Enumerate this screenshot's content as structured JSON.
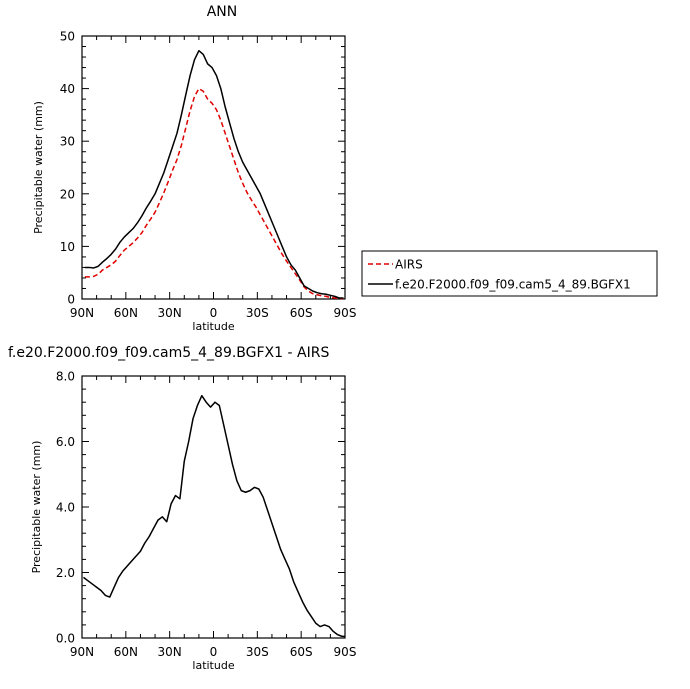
{
  "chart_data": [
    {
      "type": "line",
      "title": "ANN",
      "xlabel": "latitude",
      "ylabel": "Precipitable water (mm)",
      "xlim": [
        90,
        -90
      ],
      "ylim": [
        0,
        50
      ],
      "xticks": [
        90,
        60,
        30,
        0,
        -30,
        -60,
        -90
      ],
      "xtick_labels": [
        "90N",
        "60N",
        "30N",
        "0",
        "30S",
        "60S",
        "90S"
      ],
      "yticks": [
        0,
        10,
        20,
        30,
        40,
        50
      ],
      "ytick_labels": [
        "0",
        "10",
        "20",
        "30",
        "40",
        "50"
      ],
      "grid": false,
      "legend_placement": "right",
      "series": [
        {
          "name": "AIRS",
          "color": "#e00000",
          "dash": "dashed",
          "x": [
            88,
            85,
            82,
            79,
            76,
            73,
            70,
            67,
            64,
            61,
            58,
            55,
            52,
            49,
            46,
            43,
            40,
            37,
            34,
            31,
            28,
            25,
            22,
            19,
            16,
            13,
            10,
            7,
            4,
            1,
            -2,
            -5,
            -8,
            -11,
            -14,
            -17,
            -20,
            -23,
            -26,
            -29,
            -32,
            -35,
            -38,
            -41,
            -44,
            -47,
            -50,
            -53,
            -56,
            -59,
            -62,
            -65,
            -68,
            -71,
            -74,
            -77,
            -80,
            -83,
            -86,
            -89
          ],
          "y": [
            4.2,
            4.2,
            4.3,
            4.7,
            5.5,
            6.0,
            6.5,
            7.2,
            8.3,
            9.3,
            10.0,
            10.7,
            11.6,
            12.6,
            14.0,
            15.2,
            16.5,
            18.3,
            20.2,
            22.3,
            24.5,
            26.5,
            29.2,
            32.5,
            35.8,
            38.5,
            40.0,
            39.5,
            38.0,
            37.2,
            36.0,
            34.0,
            31.5,
            29.0,
            26.5,
            24.0,
            22.0,
            20.2,
            18.8,
            17.5,
            16.0,
            14.5,
            13.0,
            11.5,
            10.0,
            8.5,
            7.2,
            6.0,
            4.8,
            3.6,
            2.3,
            1.5,
            1.0,
            0.8,
            0.6,
            0.5,
            0.3,
            0.2,
            0.1,
            0.1
          ]
        },
        {
          "name": "f.e20.F2000.f09_f09.cam5_4_89.BGFX1",
          "color": "#000000",
          "dash": "solid",
          "x": [
            88,
            85,
            82,
            79,
            76,
            73,
            70,
            67,
            64,
            61,
            58,
            55,
            52,
            49,
            46,
            43,
            40,
            37,
            34,
            31,
            28,
            25,
            22,
            19,
            16,
            13,
            10,
            7,
            4,
            1,
            -2,
            -5,
            -8,
            -11,
            -14,
            -17,
            -20,
            -23,
            -26,
            -29,
            -32,
            -35,
            -38,
            -41,
            -44,
            -47,
            -50,
            -53,
            -56,
            -59,
            -62,
            -65,
            -68,
            -71,
            -74,
            -77,
            -80,
            -83,
            -86,
            -89
          ],
          "y": [
            6.0,
            6.0,
            5.9,
            6.2,
            7.0,
            7.7,
            8.5,
            9.5,
            10.8,
            11.8,
            12.6,
            13.4,
            14.5,
            15.8,
            17.3,
            18.6,
            20.0,
            22.0,
            24.0,
            26.5,
            29.0,
            31.5,
            35.0,
            38.8,
            42.5,
            45.5,
            47.2,
            46.5,
            44.7,
            44.0,
            42.5,
            40.0,
            36.5,
            33.5,
            30.5,
            28.0,
            26.0,
            24.5,
            23.0,
            21.5,
            20.0,
            18.0,
            16.0,
            14.0,
            12.0,
            10.0,
            8.0,
            6.5,
            5.5,
            4.0,
            2.5,
            2.0,
            1.5,
            1.2,
            1.0,
            0.9,
            0.7,
            0.5,
            0.2,
            0.2
          ]
        }
      ]
    },
    {
      "type": "line",
      "title": "f.e20.F2000.f09_f09.cam5_4_89.BGFX1 - AIRS",
      "xlabel": "latitude",
      "ylabel": "Precipitable water (mm)",
      "xlim": [
        90,
        -90
      ],
      "ylim": [
        0,
        8
      ],
      "xticks": [
        90,
        60,
        30,
        0,
        -30,
        -60,
        -90
      ],
      "xtick_labels": [
        "90N",
        "60N",
        "30N",
        "0",
        "30S",
        "60S",
        "90S"
      ],
      "yticks": [
        0,
        2,
        4,
        6,
        8
      ],
      "ytick_labels": [
        "0.0",
        "2.0",
        "4.0",
        "6.0",
        "8.0"
      ],
      "grid": false,
      "series": [
        {
          "color": "#000000",
          "dash": "solid",
          "x": [
            89,
            86,
            83,
            80,
            77,
            74,
            71,
            68,
            65,
            62,
            59,
            56,
            53,
            50,
            47,
            44,
            41,
            38,
            35,
            32,
            29,
            26,
            23,
            20,
            17,
            14,
            11,
            8,
            5,
            2,
            -1,
            -4,
            -7,
            -10,
            -13,
            -16,
            -19,
            -22,
            -25,
            -28,
            -31,
            -34,
            -37,
            -40,
            -43,
            -46,
            -49,
            -52,
            -55,
            -58,
            -61,
            -64,
            -67,
            -70,
            -73,
            -76,
            -79,
            -82,
            -85,
            -88,
            -90
          ],
          "y": [
            1.85,
            1.75,
            1.65,
            1.55,
            1.45,
            1.3,
            1.25,
            1.55,
            1.85,
            2.05,
            2.2,
            2.35,
            2.5,
            2.65,
            2.9,
            3.1,
            3.35,
            3.6,
            3.7,
            3.55,
            4.1,
            4.35,
            4.25,
            5.4,
            6.0,
            6.7,
            7.1,
            7.4,
            7.2,
            7.05,
            7.2,
            7.1,
            6.5,
            5.9,
            5.3,
            4.8,
            4.5,
            4.45,
            4.5,
            4.6,
            4.55,
            4.3,
            3.9,
            3.5,
            3.1,
            2.7,
            2.4,
            2.1,
            1.7,
            1.4,
            1.1,
            0.85,
            0.65,
            0.45,
            0.35,
            0.4,
            0.35,
            0.2,
            0.1,
            0.05,
            0.05
          ]
        }
      ]
    }
  ]
}
